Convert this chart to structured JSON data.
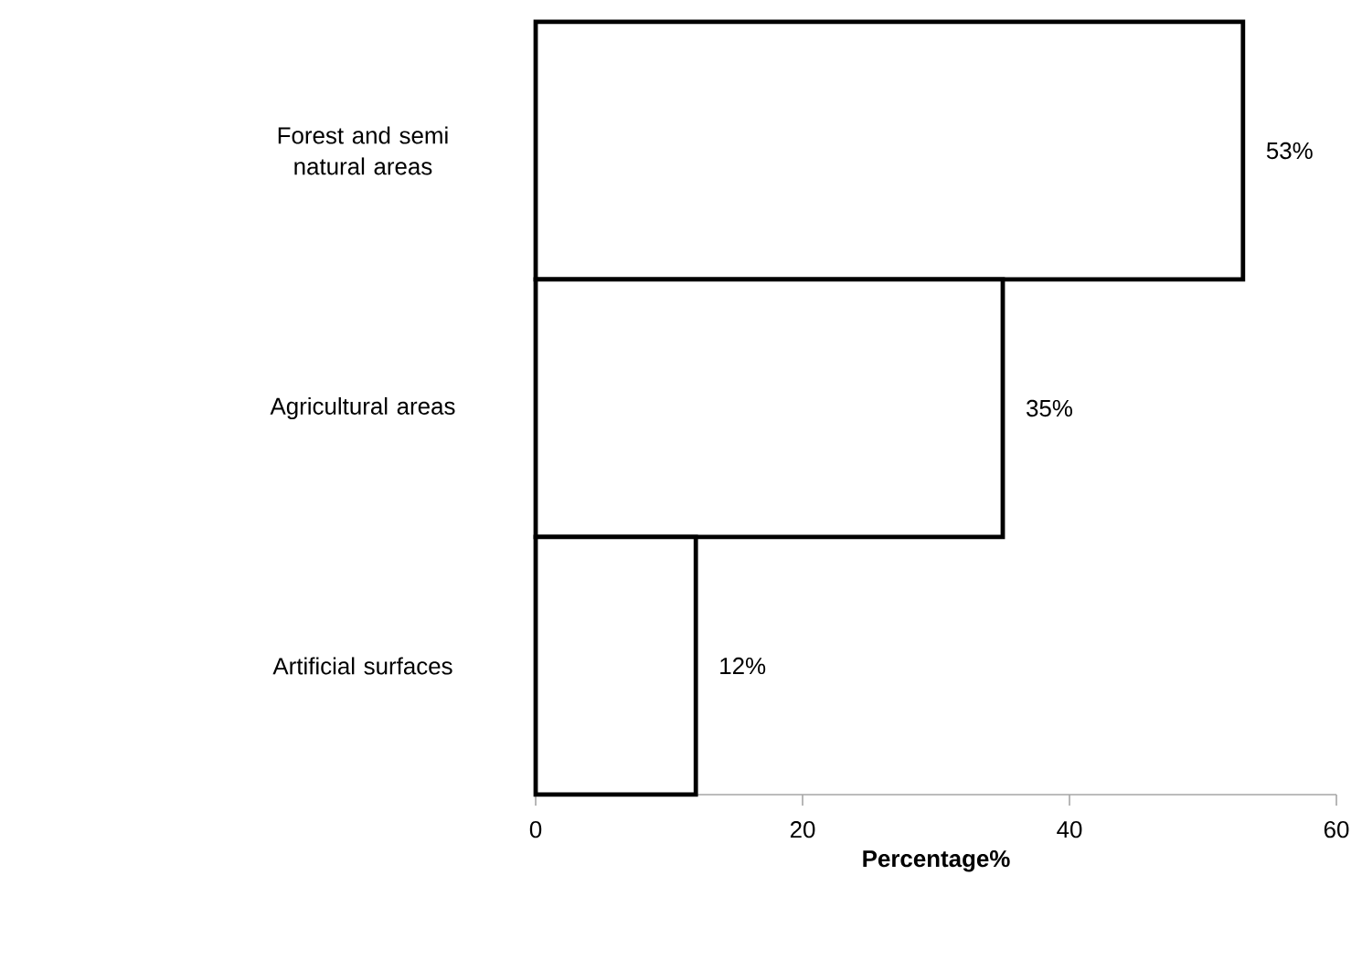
{
  "chart_data": {
    "type": "bar",
    "orientation": "horizontal",
    "xlabel": "Percentage%",
    "categories": [
      "Forest and semi natural areas",
      "Agricultural areas",
      "Artificial surfaces"
    ],
    "values": [
      53,
      35,
      12
    ],
    "value_labels": [
      "53%",
      "35%",
      "12%"
    ],
    "color": "#ffffff",
    "xlim": [
      0,
      60
    ],
    "xticks": [
      0,
      20,
      40,
      60
    ],
    "grid": false
  }
}
